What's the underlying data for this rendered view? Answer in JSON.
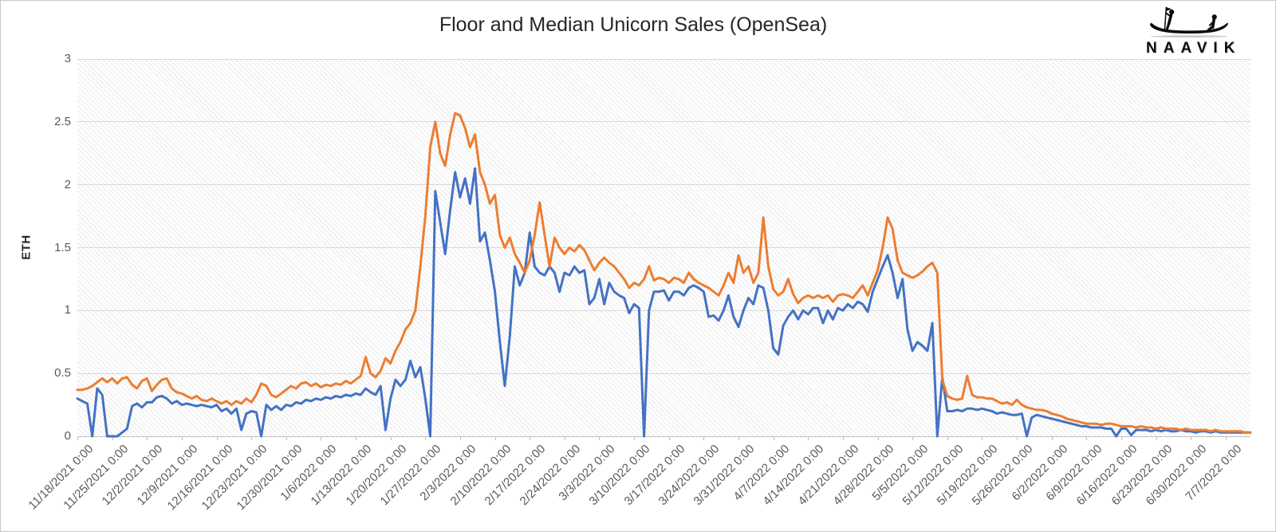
{
  "logo": {
    "brand": "NAAVIK",
    "icon": "boat-rowers-icon"
  },
  "chart_data": {
    "type": "line",
    "title": "Floor and Median Unicorn Sales (OpenSea)",
    "xlabel": "",
    "ylabel": "ETH",
    "ylim": [
      0,
      3
    ],
    "grid": "horizontal",
    "legend": "none",
    "plot_background": "light-gray-diagonal-hatch",
    "yticks": [
      {
        "v": 0,
        "label": "0"
      },
      {
        "v": 0.5,
        "label": "0.5"
      },
      {
        "v": 1,
        "label": "1"
      },
      {
        "v": 1.5,
        "label": "1.5"
      },
      {
        "v": 2,
        "label": "2"
      },
      {
        "v": 2.5,
        "label": "2.5"
      },
      {
        "v": 3,
        "label": "3"
      }
    ],
    "x_tick_every_n_points": 7,
    "x_tick_labels": [
      "11/18/2021 0:00",
      "11/25/2021 0:00",
      "12/2/2021 0:00",
      "12/9/2021 0:00",
      "12/16/2021 0:00",
      "12/23/2021 0:00",
      "12/30/2021 0:00",
      "1/6/2022 0:00",
      "1/13/2022 0:00",
      "1/20/2022 0:00",
      "1/27/2022 0:00",
      "2/3/2022 0:00",
      "2/10/2022 0:00",
      "2/17/2022 0:00",
      "2/24/2022 0:00",
      "3/3/2022 0:00",
      "3/10/2022 0:00",
      "3/17/2022 0:00",
      "3/24/2022 0:00",
      "3/31/2022 0:00",
      "4/7/2022 0:00",
      "4/14/2022 0:00",
      "4/21/2022 0:00",
      "4/28/2022 0:00",
      "5/5/2022 0:00",
      "5/12/2022 0:00",
      "5/19/2022 0:00",
      "5/26/2022 0:00",
      "6/2/2022 0:00",
      "6/9/2022 0:00",
      "6/16/2022 0:00",
      "6/23/2022 0:00",
      "6/30/2022 0:00",
      "7/7/2022 0:00"
    ],
    "series": [
      {
        "name": "Floor",
        "color": "#4472C4",
        "values": [
          0.3,
          0.28,
          0.26,
          0.0,
          0.38,
          0.33,
          0.0,
          0.0,
          0.0,
          0.03,
          0.06,
          0.24,
          0.26,
          0.23,
          0.27,
          0.27,
          0.31,
          0.32,
          0.3,
          0.26,
          0.28,
          0.25,
          0.26,
          0.25,
          0.24,
          0.25,
          0.24,
          0.23,
          0.25,
          0.2,
          0.22,
          0.18,
          0.22,
          0.05,
          0.18,
          0.2,
          0.19,
          0.0,
          0.25,
          0.21,
          0.24,
          0.21,
          0.25,
          0.24,
          0.27,
          0.26,
          0.29,
          0.28,
          0.3,
          0.29,
          0.31,
          0.3,
          0.32,
          0.31,
          0.33,
          0.32,
          0.34,
          0.33,
          0.38,
          0.35,
          0.33,
          0.4,
          0.05,
          0.3,
          0.45,
          0.4,
          0.45,
          0.6,
          0.47,
          0.55,
          0.3,
          0.0,
          1.95,
          1.7,
          1.45,
          1.8,
          2.1,
          1.9,
          2.05,
          1.85,
          2.13,
          1.55,
          1.62,
          1.4,
          1.15,
          0.75,
          0.4,
          0.8,
          1.35,
          1.2,
          1.3,
          1.62,
          1.35,
          1.3,
          1.28,
          1.35,
          1.3,
          1.15,
          1.3,
          1.28,
          1.35,
          1.3,
          1.32,
          1.05,
          1.1,
          1.25,
          1.05,
          1.22,
          1.15,
          1.12,
          1.1,
          0.98,
          1.05,
          1.02,
          0.0,
          1.0,
          1.15,
          1.15,
          1.16,
          1.08,
          1.15,
          1.15,
          1.12,
          1.18,
          1.2,
          1.18,
          1.15,
          0.95,
          0.96,
          0.92,
          1.0,
          1.12,
          0.95,
          0.87,
          1.0,
          1.1,
          1.05,
          1.2,
          1.18,
          1.0,
          0.7,
          0.65,
          0.88,
          0.95,
          1.0,
          0.93,
          1.0,
          0.97,
          1.02,
          1.02,
          0.9,
          1.0,
          0.93,
          1.02,
          1.0,
          1.05,
          1.02,
          1.07,
          1.05,
          0.99,
          1.15,
          1.25,
          1.35,
          1.44,
          1.3,
          1.1,
          1.25,
          0.85,
          0.68,
          0.75,
          0.72,
          0.68,
          0.9,
          0.0,
          0.47,
          0.2,
          0.2,
          0.21,
          0.2,
          0.22,
          0.22,
          0.21,
          0.22,
          0.21,
          0.2,
          0.18,
          0.19,
          0.18,
          0.17,
          0.17,
          0.18,
          0.0,
          0.15,
          0.17,
          0.16,
          0.15,
          0.14,
          0.13,
          0.12,
          0.11,
          0.1,
          0.09,
          0.08,
          0.08,
          0.07,
          0.07,
          0.07,
          0.06,
          0.06,
          0.0,
          0.06,
          0.06,
          0.01,
          0.05,
          0.05,
          0.05,
          0.04,
          0.05,
          0.04,
          0.05,
          0.04,
          0.04,
          0.05,
          0.04,
          0.04,
          0.03,
          0.04,
          0.04,
          0.03,
          0.04,
          0.03,
          0.03,
          0.03,
          0.03,
          0.03,
          0.03,
          0.03
        ]
      },
      {
        "name": "Median",
        "color": "#ED7D31",
        "values": [
          0.37,
          0.37,
          0.38,
          0.4,
          0.43,
          0.46,
          0.43,
          0.46,
          0.42,
          0.46,
          0.47,
          0.41,
          0.38,
          0.44,
          0.46,
          0.36,
          0.41,
          0.45,
          0.46,
          0.38,
          0.35,
          0.34,
          0.32,
          0.3,
          0.32,
          0.29,
          0.28,
          0.3,
          0.28,
          0.26,
          0.28,
          0.25,
          0.28,
          0.26,
          0.3,
          0.27,
          0.33,
          0.42,
          0.4,
          0.33,
          0.31,
          0.34,
          0.37,
          0.4,
          0.38,
          0.42,
          0.43,
          0.4,
          0.42,
          0.39,
          0.41,
          0.4,
          0.42,
          0.41,
          0.44,
          0.42,
          0.45,
          0.48,
          0.63,
          0.5,
          0.47,
          0.52,
          0.62,
          0.58,
          0.68,
          0.75,
          0.85,
          0.9,
          1.0,
          1.35,
          1.75,
          2.3,
          2.5,
          2.25,
          2.15,
          2.4,
          2.57,
          2.55,
          2.45,
          2.3,
          2.4,
          2.1,
          2.0,
          1.85,
          1.92,
          1.6,
          1.5,
          1.58,
          1.45,
          1.38,
          1.3,
          1.4,
          1.6,
          1.86,
          1.6,
          1.35,
          1.58,
          1.5,
          1.45,
          1.5,
          1.47,
          1.52,
          1.48,
          1.4,
          1.32,
          1.38,
          1.42,
          1.38,
          1.35,
          1.3,
          1.25,
          1.18,
          1.22,
          1.2,
          1.25,
          1.35,
          1.24,
          1.26,
          1.25,
          1.22,
          1.26,
          1.25,
          1.22,
          1.3,
          1.25,
          1.22,
          1.2,
          1.18,
          1.15,
          1.12,
          1.2,
          1.3,
          1.22,
          1.44,
          1.3,
          1.35,
          1.22,
          1.3,
          1.74,
          1.35,
          1.17,
          1.12,
          1.15,
          1.25,
          1.13,
          1.06,
          1.1,
          1.12,
          1.1,
          1.12,
          1.1,
          1.12,
          1.07,
          1.12,
          1.13,
          1.12,
          1.1,
          1.15,
          1.2,
          1.12,
          1.22,
          1.32,
          1.5,
          1.74,
          1.65,
          1.4,
          1.3,
          1.28,
          1.26,
          1.28,
          1.31,
          1.35,
          1.38,
          1.3,
          0.45,
          0.32,
          0.3,
          0.29,
          0.3,
          0.48,
          0.33,
          0.31,
          0.31,
          0.3,
          0.3,
          0.28,
          0.26,
          0.27,
          0.25,
          0.29,
          0.25,
          0.23,
          0.22,
          0.21,
          0.21,
          0.2,
          0.18,
          0.17,
          0.16,
          0.14,
          0.13,
          0.12,
          0.11,
          0.1,
          0.1,
          0.1,
          0.09,
          0.1,
          0.1,
          0.09,
          0.08,
          0.08,
          0.08,
          0.07,
          0.08,
          0.07,
          0.07,
          0.06,
          0.07,
          0.06,
          0.06,
          0.06,
          0.05,
          0.06,
          0.05,
          0.05,
          0.05,
          0.05,
          0.04,
          0.05,
          0.04,
          0.04,
          0.04,
          0.04,
          0.04,
          0.03,
          0.03
        ]
      }
    ]
  },
  "colors": {
    "floor_line": "#4472C4",
    "median_line": "#ED7D31",
    "gridline": "#d9d9d9",
    "axis": "#bfbfbf",
    "tick_text": "#595959",
    "title_text": "#262626",
    "hatch": "#e9e9e9",
    "frame_border": "#c9c9c9"
  }
}
